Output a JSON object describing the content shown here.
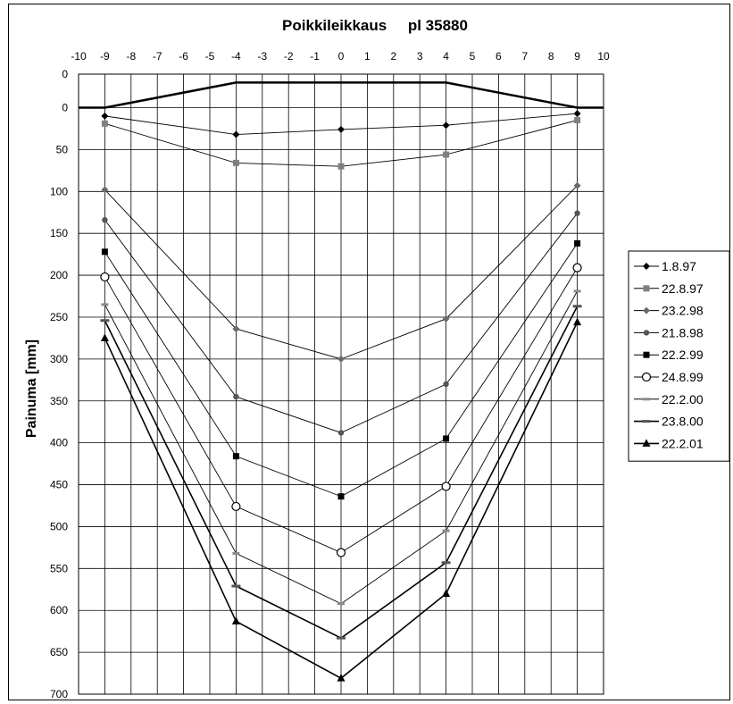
{
  "chart_data": {
    "type": "line",
    "title": "Poikkileikkaus     pl 35880",
    "xlabel": "",
    "ylabel": "Painuma [mm]",
    "xlim": [
      -10,
      10
    ],
    "ylim": [
      700,
      -30
    ],
    "y_inverted": true,
    "xticks": [
      -10,
      -9,
      -8,
      -7,
      -6,
      -5,
      -4,
      -3,
      -2,
      -1,
      0,
      1,
      2,
      3,
      4,
      5,
      6,
      7,
      8,
      9,
      10
    ],
    "yticks": [
      0,
      50,
      100,
      150,
      200,
      250,
      300,
      350,
      400,
      450,
      500,
      550,
      600,
      650,
      700
    ],
    "ytick_top_clipped": "0",
    "grid": true,
    "legend_position": "right",
    "profile": {
      "x": [
        -10,
        -9,
        -4,
        4,
        9,
        10
      ],
      "y": [
        0,
        0,
        -30,
        -30,
        0,
        0
      ]
    },
    "x": [
      -9,
      -4,
      0,
      4,
      9
    ],
    "series": [
      {
        "name": "1.8.97",
        "marker": "diamond",
        "values": [
          10,
          32,
          26,
          21,
          7
        ]
      },
      {
        "name": "22.8.97",
        "marker": "square-gray",
        "values": [
          19,
          66,
          70,
          56,
          15
        ]
      },
      {
        "name": "23.2.98",
        "marker": "diamond-gray",
        "values": [
          98,
          264,
          300,
          252,
          93
        ]
      },
      {
        "name": "21.8.98",
        "marker": "circle-gray",
        "values": [
          134,
          345,
          388,
          330,
          126
        ]
      },
      {
        "name": "22.2.99",
        "marker": "square",
        "values": [
          172,
          416,
          464,
          395,
          162
        ]
      },
      {
        "name": "24.8.99",
        "marker": "circle-open",
        "values": [
          202,
          476,
          531,
          452,
          191
        ]
      },
      {
        "name": "22.2.00",
        "marker": "dash-gray",
        "values": [
          235,
          532,
          592,
          505,
          219
        ]
      },
      {
        "name": "23.8.00",
        "marker": "dash",
        "values": [
          254,
          571,
          633,
          543,
          237
        ]
      },
      {
        "name": "22.2.01",
        "marker": "triangle",
        "values": [
          275,
          613,
          681,
          580,
          256
        ]
      }
    ]
  }
}
